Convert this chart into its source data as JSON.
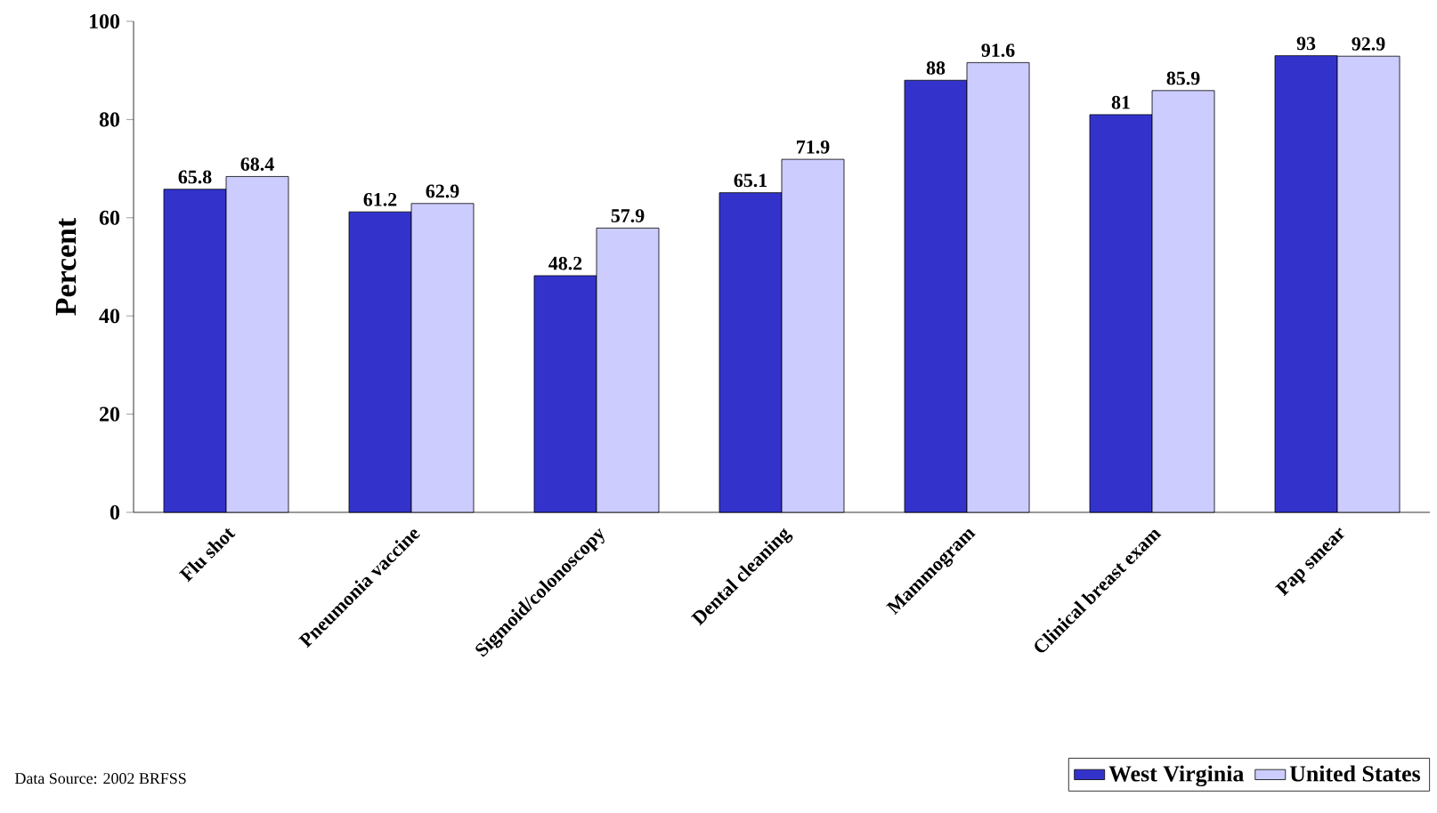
{
  "chart_data": {
    "type": "bar",
    "ylabel": "Percent",
    "categories": [
      "Flu shot",
      "Pneumonia vaccine",
      "Sigmoid/colonoscopy",
      "Dental cleaning",
      "Mammogram",
      "Clinical breast exam",
      "Pap smear"
    ],
    "series": [
      {
        "name": "West Virginia",
        "color": "#3333cc",
        "values": [
          65.8,
          61.2,
          48.2,
          65.1,
          88,
          81,
          93
        ]
      },
      {
        "name": "United States",
        "color": "#ccccff",
        "values": [
          68.4,
          62.9,
          57.9,
          71.9,
          91.6,
          85.9,
          92.9
        ]
      }
    ],
    "ylim": [
      0,
      100
    ],
    "yticks": [
      0,
      20,
      40,
      60,
      80,
      100
    ],
    "data_labels": true,
    "legend": "bottom right",
    "grid": false,
    "annotations": [
      "Data Source: 2002 BRFSS"
    ]
  }
}
